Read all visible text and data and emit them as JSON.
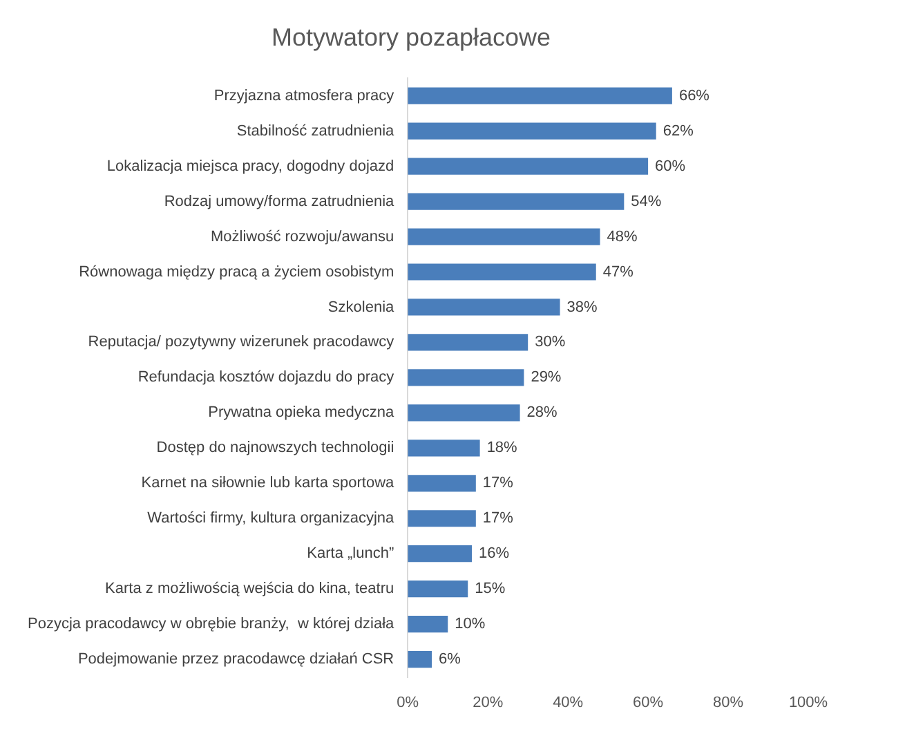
{
  "chart_data": {
    "type": "bar",
    "orientation": "horizontal",
    "title": "Motywatory pozapłacowe",
    "categories": [
      "Przyjazna atmosfera pracy",
      "Stabilność zatrudnienia",
      "Lokalizacja miejsca pracy, dogodny dojazd",
      "Rodzaj umowy/forma zatrudnienia",
      "Możliwość rozwoju/awansu",
      "Równowaga między pracą a życiem osobistym",
      "Szkolenia",
      "Reputacja/ pozytywny wizerunek pracodawcy",
      "Refundacja kosztów dojazdu do pracy",
      "Prywatna opieka medyczna",
      "Dostęp do najnowszych technologii",
      "Karnet na siłownie lub karta sportowa",
      "Wartości firmy, kultura organizacyjna",
      "Karta „lunch”",
      "Karta z możliwością wejścia do kina, teatru",
      "Pozycja pracodawcy w obrębie branży,  w której działa",
      "Podejmowanie przez pracodawcę działań CSR"
    ],
    "values": [
      66,
      62,
      60,
      54,
      48,
      47,
      38,
      30,
      29,
      28,
      18,
      17,
      17,
      16,
      15,
      10,
      6
    ],
    "value_labels": [
      "66%",
      "62%",
      "60%",
      "54%",
      "48%",
      "47%",
      "38%",
      "30%",
      "29%",
      "28%",
      "18%",
      "17%",
      "17%",
      "16%",
      "15%",
      "10%",
      "6%"
    ],
    "color": "#4a7ebb",
    "xlim": [
      0,
      100
    ],
    "xticks": [
      {
        "value": 0,
        "label": "0%"
      },
      {
        "value": 20,
        "label": "20%"
      },
      {
        "value": 40,
        "label": "40%"
      },
      {
        "value": 60,
        "label": "60%"
      },
      {
        "value": 80,
        "label": "80%"
      },
      {
        "value": 100,
        "label": "100%"
      }
    ],
    "grid": false,
    "legend": false
  }
}
